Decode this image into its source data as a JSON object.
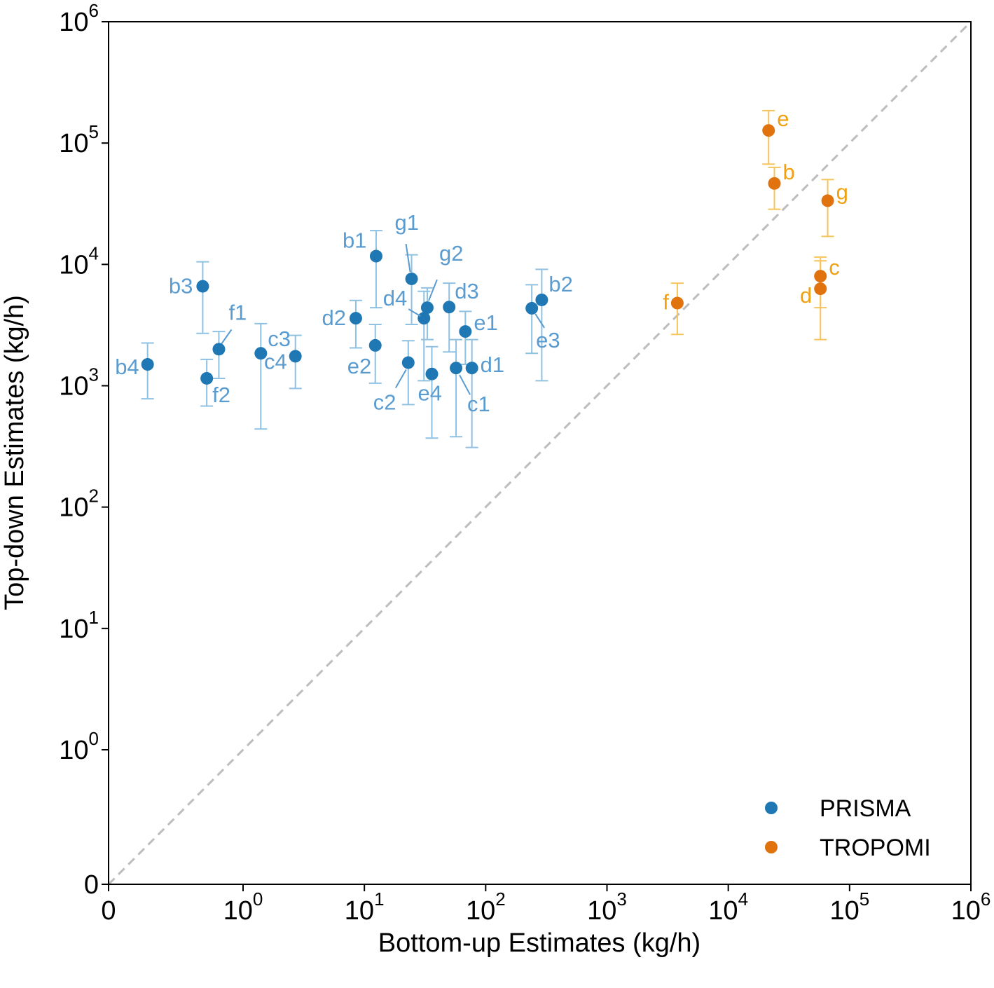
{
  "chart_data": {
    "type": "scatter",
    "xlabel": "Bottom-up Estimates (kg/h)",
    "ylabel": "Top-down Estimates (kg/h)",
    "xscale": "symlog",
    "yscale": "symlog",
    "xlim": [
      0,
      1000000
    ],
    "ylim": [
      0,
      1000000
    ],
    "x_ticks": [
      {
        "value": 0,
        "base": "0",
        "exp": ""
      },
      {
        "value": 1,
        "base": "10",
        "exp": "0"
      },
      {
        "value": 10,
        "base": "10",
        "exp": "1"
      },
      {
        "value": 100,
        "base": "10",
        "exp": "2"
      },
      {
        "value": 1000,
        "base": "10",
        "exp": "3"
      },
      {
        "value": 10000,
        "base": "10",
        "exp": "4"
      },
      {
        "value": 100000,
        "base": "10",
        "exp": "5"
      },
      {
        "value": 1000000,
        "base": "10",
        "exp": "6"
      }
    ],
    "y_ticks": [
      {
        "value": 0,
        "base": "0",
        "exp": ""
      },
      {
        "value": 1,
        "base": "10",
        "exp": "0"
      },
      {
        "value": 10,
        "base": "10",
        "exp": "1"
      },
      {
        "value": 100,
        "base": "10",
        "exp": "2"
      },
      {
        "value": 1000,
        "base": "10",
        "exp": "3"
      },
      {
        "value": 10000,
        "base": "10",
        "exp": "4"
      },
      {
        "value": 100000,
        "base": "10",
        "exp": "5"
      },
      {
        "value": 1000000,
        "base": "10",
        "exp": "6"
      }
    ],
    "reference_line": "1:1 dashed",
    "grid": false,
    "legend_position": "lower-right",
    "series": [
      {
        "name": "PRISMA",
        "color": "#1f77b4",
        "errorbar_color": "#8fc1e3",
        "label_color": "#5a9bd0",
        "points": [
          {
            "label": "b1",
            "x": 12.5,
            "y": 11700,
            "y_lo": 4400,
            "y_hi": 19000
          },
          {
            "label": "b2",
            "x": 290,
            "y": 5100,
            "y_hi": 9100,
            "y_lo": 1100
          },
          {
            "label": "b3",
            "x": 0.7,
            "y": 6600,
            "y_hi": 10500,
            "y_lo": 2700
          },
          {
            "label": "b4",
            "x": 0.29,
            "y": 1500,
            "y_hi": 2250,
            "y_lo": 780
          },
          {
            "label": "c1",
            "x": 57,
            "y": 1400,
            "y_hi": 2400,
            "y_lo": 380
          },
          {
            "label": "c2",
            "x": 23,
            "y": 1550,
            "y_hi": 2350,
            "y_lo": 700
          },
          {
            "label": "c3",
            "x": 1.4,
            "y": 1850,
            "y_hi": 3250,
            "y_lo": 440
          },
          {
            "label": "c4",
            "x": 2.7,
            "y": 1750,
            "y_hi": 2600,
            "y_lo": 950
          },
          {
            "label": "d1",
            "x": 77,
            "y": 1400,
            "y_hi": 2400,
            "y_lo": 310
          },
          {
            "label": "d2",
            "x": 8.5,
            "y": 3600,
            "y_hi": 5050,
            "y_lo": 2050
          },
          {
            "label": "d3",
            "x": 50,
            "y": 4450,
            "y_hi": 7000,
            "y_lo": 1900
          },
          {
            "label": "d4",
            "x": 31,
            "y": 3600,
            "y_hi": 6000,
            "y_lo": 1100
          },
          {
            "label": "e1",
            "x": 68,
            "y": 2800,
            "y_hi": 4100,
            "y_lo": 1500
          },
          {
            "label": "e2",
            "x": 12.3,
            "y": 2150,
            "y_hi": 3200,
            "y_lo": 1050
          },
          {
            "label": "e3",
            "x": 240,
            "y": 4350,
            "y_hi": 6800,
            "y_lo": 1850
          },
          {
            "label": "e4",
            "x": 36,
            "y": 1250,
            "y_hi": 2100,
            "y_lo": 370
          },
          {
            "label": "f1",
            "x": 0.82,
            "y": 2000,
            "y_hi": 2800,
            "y_lo": 1150
          },
          {
            "label": "f2",
            "x": 0.73,
            "y": 1150,
            "y_hi": 1650,
            "y_lo": 680
          },
          {
            "label": "g1",
            "x": 24.5,
            "y": 7600,
            "y_hi": 12000,
            "y_lo": 3200
          },
          {
            "label": "g2",
            "x": 33,
            "y": 4400,
            "y_hi": 6400,
            "y_lo": 2400
          }
        ]
      },
      {
        "name": "TROPOMI",
        "color": "#e0730d",
        "errorbar_color": "#f7c45c",
        "label_color": "#f1a010",
        "points": [
          {
            "label": "e",
            "x": 21500,
            "y": 127000,
            "y_hi": 185000,
            "y_lo": 67000
          },
          {
            "label": "b",
            "x": 24000,
            "y": 46500,
            "y_hi": 63000,
            "y_lo": 28500
          },
          {
            "label": "g",
            "x": 66000,
            "y": 33500,
            "y_hi": 50000,
            "y_lo": 17000
          },
          {
            "label": "c",
            "x": 57500,
            "y": 8000,
            "y_hi": 11500,
            "y_lo": 4400
          },
          {
            "label": "d",
            "x": 57500,
            "y": 6300,
            "y_hi": 10700,
            "y_lo": 2400
          },
          {
            "label": "f",
            "x": 3800,
            "y": 4800,
            "y_hi": 7000,
            "y_lo": 2650
          }
        ]
      }
    ]
  }
}
